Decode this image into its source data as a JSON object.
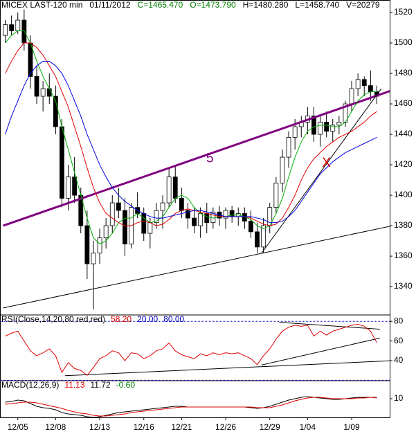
{
  "chart_data": [
    {
      "type": "candlestick",
      "title": "MICEX LAST-120 min",
      "date": "01/11/2012",
      "stats": [
        {
          "label": "C=1465.470",
          "color": "#008000"
        },
        {
          "label": "O=1473.790",
          "color": "#008000"
        },
        {
          "label": "H=1480.280",
          "color": "#000000"
        },
        {
          "label": "L=1458.740",
          "color": "#000000"
        },
        {
          "label": "V=20279",
          "color": "#000000"
        }
      ],
      "categories": [
        null,
        null,
        "12/05",
        null,
        null,
        null,
        null,
        null,
        "12/08",
        null,
        null,
        null,
        null,
        null,
        null,
        "12/13",
        null,
        null,
        null,
        null,
        null,
        null,
        "12/16",
        null,
        null,
        null,
        null,
        null,
        "12/21",
        null,
        null,
        null,
        null,
        null,
        null,
        "12/26",
        null,
        null,
        null,
        null,
        null,
        null,
        "12/29",
        null,
        null,
        null,
        null,
        null,
        "1/04",
        null,
        null,
        null,
        null,
        null,
        null,
        "1/09",
        null,
        null,
        null,
        null
      ],
      "open": [
        1505,
        1512,
        1508,
        1515,
        1500,
        1478,
        1465,
        1470,
        1465,
        1445,
        1398,
        1412,
        1400,
        1380,
        1355,
        1362,
        1372,
        1380,
        1395,
        1390,
        1368,
        1392,
        1388,
        1375,
        1382,
        1390,
        1395,
        1412,
        1398,
        1390,
        1385,
        1380,
        1388,
        1382,
        1389,
        1385,
        1390,
        1386,
        1388,
        1383,
        1376,
        1366,
        1380,
        1392,
        1408,
        1425,
        1438,
        1445,
        1448,
        1452,
        1440,
        1448,
        1442,
        1446,
        1448,
        1460,
        1470,
        1476,
        1472,
        1468
      ],
      "high": [
        1515,
        1518,
        1520,
        1522,
        1505,
        1485,
        1475,
        1480,
        1472,
        1450,
        1420,
        1425,
        1405,
        1390,
        1370,
        1378,
        1385,
        1400,
        1405,
        1398,
        1395,
        1402,
        1392,
        1385,
        1395,
        1400,
        1418,
        1420,
        1405,
        1395,
        1392,
        1392,
        1395,
        1392,
        1393,
        1392,
        1393,
        1392,
        1392,
        1390,
        1382,
        1385,
        1395,
        1412,
        1430,
        1442,
        1450,
        1452,
        1458,
        1458,
        1452,
        1455,
        1450,
        1452,
        1462,
        1475,
        1480,
        1478,
        1482,
        1472
      ],
      "low": [
        1500,
        1505,
        1506,
        1495,
        1470,
        1460,
        1455,
        1460,
        1440,
        1392,
        1390,
        1395,
        1375,
        1345,
        1325,
        1355,
        1365,
        1375,
        1385,
        1360,
        1365,
        1385,
        1370,
        1365,
        1378,
        1378,
        1392,
        1395,
        1385,
        1378,
        1375,
        1372,
        1375,
        1378,
        1380,
        1378,
        1382,
        1380,
        1378,
        1372,
        1362,
        1362,
        1375,
        1388,
        1402,
        1418,
        1430,
        1438,
        1440,
        1435,
        1432,
        1438,
        1435,
        1440,
        1445,
        1455,
        1465,
        1465,
        1462,
        1460
      ],
      "close": [
        1512,
        1508,
        1515,
        1500,
        1478,
        1465,
        1470,
        1465,
        1445,
        1398,
        1412,
        1400,
        1380,
        1355,
        1362,
        1372,
        1380,
        1395,
        1390,
        1368,
        1392,
        1388,
        1375,
        1382,
        1390,
        1395,
        1412,
        1398,
        1390,
        1385,
        1380,
        1388,
        1382,
        1389,
        1385,
        1390,
        1386,
        1388,
        1383,
        1376,
        1366,
        1380,
        1392,
        1408,
        1425,
        1438,
        1445,
        1448,
        1452,
        1440,
        1448,
        1442,
        1446,
        1448,
        1460,
        1470,
        1476,
        1472,
        1468,
        1465
      ],
      "series": [
        {
          "color": "#00b000",
          "values": [
            1500,
            1505,
            1508,
            1508,
            1500,
            1488,
            1478,
            1470,
            1462,
            1445,
            1430,
            1415,
            1400,
            1385,
            1372,
            1368,
            1370,
            1375,
            1382,
            1385,
            1385,
            1388,
            1385,
            1382,
            1383,
            1386,
            1392,
            1398,
            1400,
            1398,
            1392,
            1388,
            1386,
            1385,
            1386,
            1386,
            1387,
            1387,
            1386,
            1384,
            1380,
            1378,
            1380,
            1388,
            1398,
            1412,
            1425,
            1435,
            1442,
            1445,
            1446,
            1446,
            1445,
            1445,
            1448,
            1455,
            1462,
            1466,
            1468,
            1468
          ]
        },
        {
          "color": "#e00000",
          "values": [
            1480,
            1488,
            1495,
            1500,
            1500,
            1497,
            1492,
            1485,
            1478,
            1468,
            1458,
            1445,
            1432,
            1418,
            1405,
            1395,
            1388,
            1385,
            1382,
            1380,
            1380,
            1382,
            1383,
            1382,
            1380,
            1381,
            1384,
            1388,
            1390,
            1391,
            1390,
            1389,
            1388,
            1387,
            1386,
            1386,
            1386,
            1386,
            1386,
            1385,
            1383,
            1381,
            1380,
            1381,
            1385,
            1392,
            1400,
            1410,
            1418,
            1424,
            1428,
            1432,
            1435,
            1438,
            1440,
            1442,
            1445,
            1448,
            1452,
            1455
          ]
        },
        {
          "color": "#0000e0",
          "values": [
            1440,
            1452,
            1462,
            1472,
            1480,
            1485,
            1488,
            1488,
            1485,
            1480,
            1472,
            1462,
            1452,
            1440,
            1430,
            1420,
            1412,
            1405,
            1400,
            1396,
            1393,
            1390,
            1388,
            1386,
            1385,
            1385,
            1386,
            1387,
            1388,
            1389,
            1390,
            1390,
            1389,
            1388,
            1387,
            1386,
            1386,
            1386,
            1386,
            1386,
            1385,
            1384,
            1382,
            1382,
            1383,
            1386,
            1390,
            1396,
            1402,
            1408,
            1414,
            1418,
            1422,
            1425,
            1428,
            1430,
            1432,
            1434,
            1436,
            1438
          ]
        }
      ],
      "trendlines": [
        {
          "color": "#800080",
          "x": [
            -0.33,
            61.5
          ],
          "values": [
            1380,
            1469
          ]
        },
        {
          "color": "#000000",
          "x": [
            -0.33,
            61.5
          ],
          "values": [
            1326,
            1380
          ]
        },
        {
          "color": "#000000",
          "x": [
            40.7,
            59.7
          ],
          "values": [
            1362,
            1470
          ]
        }
      ],
      "annotations": [
        {
          "text": "5",
          "x": 32.5,
          "y": 1424,
          "color": "#800080"
        },
        {
          "text": "X",
          "x": 51,
          "y": 1421,
          "color": "#e00000"
        }
      ],
      "ylim": [
        1321.4,
        1528.2
      ],
      "yticks": [
        1340,
        1360,
        1380,
        1400,
        1420,
        1440,
        1460,
        1480,
        1500,
        1520
      ]
    },
    {
      "type": "line",
      "title": "RSI(Close,14,20,80,red,red)",
      "stats": [
        {
          "label": "58.20",
          "color": "#e00000"
        },
        {
          "label": "20.00",
          "color": "#0000c0"
        },
        {
          "label": "80.00",
          "color": "#0000c0"
        }
      ],
      "levels": [
        20,
        80
      ],
      "series": [
        {
          "color": "#e00000",
          "values": [
            65,
            68,
            70,
            60,
            50,
            45,
            48,
            52,
            45,
            28,
            38,
            32,
            30,
            25,
            33,
            42,
            45,
            50,
            48,
            40,
            48,
            47,
            42,
            45,
            50,
            52,
            58,
            50,
            46,
            44,
            42,
            47,
            45,
            48,
            46,
            48,
            47,
            48,
            45,
            42,
            36,
            45,
            52,
            62,
            70,
            74,
            76,
            75,
            76,
            65,
            70,
            66,
            70,
            72,
            74,
            76,
            77,
            75,
            70,
            58.2
          ]
        }
      ],
      "trendlines": [
        {
          "color": "#000000",
          "x": [
            9.5,
            61.5
          ],
          "values": [
            24.7,
            40
          ]
        },
        {
          "color": "#000000",
          "x": [
            40.7,
            59.5
          ],
          "values": [
            35.6,
            63
          ]
        },
        {
          "color": "#000000",
          "x": [
            43.5,
            59.5
          ],
          "values": [
            79,
            72
          ]
        }
      ],
      "ylim": [
        19.6,
        86.5
      ],
      "yticks": [
        40,
        60,
        80
      ]
    },
    {
      "type": "line",
      "title": "MACD(12,26,9)",
      "stats": [
        {
          "label": "11.13",
          "color": "#e00000"
        },
        {
          "label": "11.72",
          "color": "#000000"
        },
        {
          "label": "-0.60",
          "color": "#008000"
        }
      ],
      "series": [
        {
          "color": "#000000",
          "values": [
            5,
            6,
            8,
            7,
            3,
            -1,
            -3,
            -4,
            -6,
            -10,
            -12,
            -13,
            -14,
            -16,
            -17,
            -16,
            -14,
            -12,
            -10,
            -9,
            -8,
            -7,
            -6,
            -5,
            -4,
            -3,
            -2,
            -1,
            -1,
            -2,
            -2,
            -2,
            -2,
            -2,
            -2,
            -2,
            -2,
            -2,
            -2,
            -3,
            -4,
            -3,
            -1,
            2,
            5,
            8,
            10,
            12,
            13,
            12,
            11,
            10,
            9,
            9,
            10,
            11,
            12,
            12,
            12,
            11.72
          ]
        },
        {
          "color": "#e00000",
          "values": [
            2,
            3,
            4,
            5,
            5,
            4,
            2,
            0,
            -2,
            -4,
            -7,
            -9,
            -11,
            -12,
            -14,
            -15,
            -15,
            -14,
            -13,
            -12,
            -10,
            -9,
            -8,
            -7,
            -6,
            -5,
            -4,
            -3,
            -2,
            -2,
            -2,
            -2,
            -2,
            -2,
            -2,
            -2,
            -2,
            -2,
            -2,
            -2,
            -3,
            -3,
            -3,
            -1,
            1,
            4,
            7,
            9,
            11,
            12,
            12,
            11,
            10,
            10,
            10,
            10,
            11,
            11,
            12,
            11.13
          ]
        }
      ],
      "ylim": [
        -17,
        36
      ],
      "yticks": [
        10
      ]
    }
  ]
}
